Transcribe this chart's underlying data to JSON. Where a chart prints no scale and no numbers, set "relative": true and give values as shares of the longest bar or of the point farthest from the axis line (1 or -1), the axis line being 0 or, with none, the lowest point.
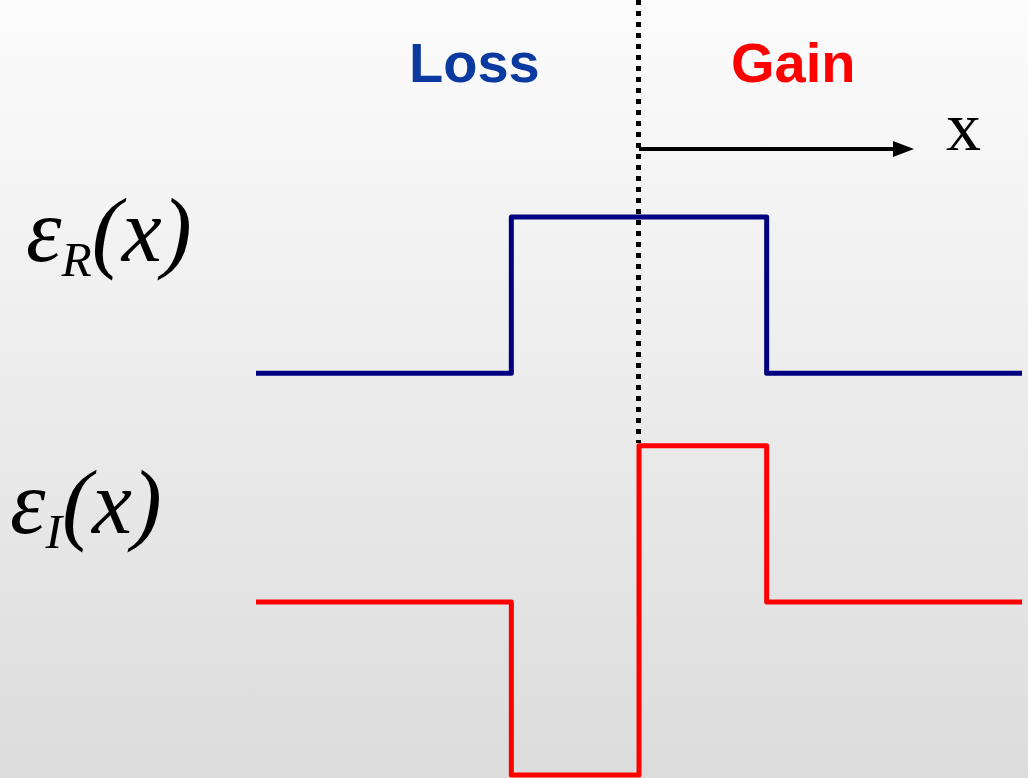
{
  "chart_data": {
    "type": "step",
    "xlabel": "x",
    "annotations": [
      "Loss",
      "Gain"
    ],
    "relative": true,
    "tick_labels": false,
    "marker": "none",
    "line_style": "solid",
    "categories": [
      null,
      null,
      null,
      null,
      null,
      null,
      null
    ],
    "series": [
      {
        "name": "ε$_{R}$(x)",
        "color": "#000080",
        "values": [
          0.72,
          0.72,
          1,
          1,
          0.72,
          0.72,
          0.72
        ]
      },
      {
        "name": "ε$_{I}$(x)",
        "color": "#ff0000",
        "values": [
          0.31,
          0.31,
          0,
          0.59,
          0.31,
          0.31,
          0.31
        ]
      }
    ]
  }
}
